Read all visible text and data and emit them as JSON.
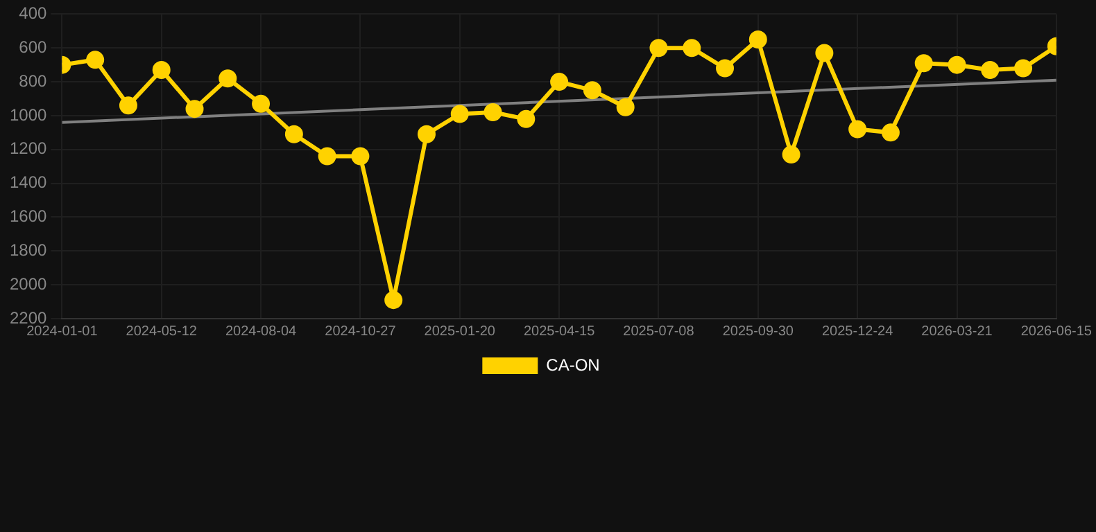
{
  "chart_data": {
    "type": "line",
    "categories": [
      "2024-01-01",
      null,
      null,
      "2024-05-12",
      null,
      null,
      "2024-08-04",
      null,
      null,
      "2024-10-27",
      null,
      null,
      "2025-01-20",
      null,
      null,
      "2025-04-15",
      null,
      null,
      "2025-07-08",
      null,
      null,
      "2025-09-30",
      null,
      null,
      "2025-12-24",
      null,
      null,
      "2026-03-21",
      null,
      null,
      "2026-06-15"
    ],
    "series": [
      {
        "name": "CA-ON",
        "color": "#ffd200",
        "marker": "circle",
        "values": [
          700,
          670,
          940,
          730,
          960,
          780,
          930,
          1110,
          1240,
          1240,
          2090,
          1110,
          990,
          980,
          1020,
          800,
          850,
          950,
          600,
          600,
          720,
          550,
          1230,
          630,
          1080,
          1100,
          690,
          700,
          730,
          720,
          590
        ]
      },
      {
        "type": "line",
        "color": "#808080",
        "marker": "none",
        "values": [
          1040,
          null,
          null,
          null,
          null,
          null,
          null,
          null,
          null,
          null,
          null,
          null,
          null,
          null,
          null,
          null,
          null,
          null,
          null,
          null,
          null,
          null,
          null,
          null,
          null,
          null,
          null,
          null,
          null,
          null,
          790
        ]
      }
    ],
    "ylim": [
      2200,
      400
    ],
    "yticks": [
      400,
      600,
      800,
      1000,
      1200,
      1400,
      1600,
      1800,
      2000,
      2200
    ],
    "grid": true,
    "legend": "bottom"
  }
}
